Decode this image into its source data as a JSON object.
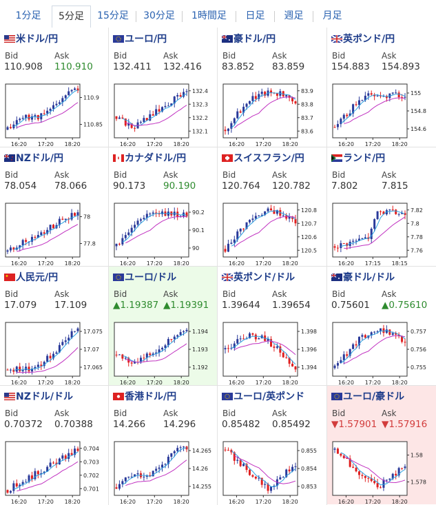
{
  "tabs": [
    {
      "label": "1分足",
      "active": false
    },
    {
      "label": "5分足",
      "active": true
    },
    {
      "label": "15分足",
      "active": false
    },
    {
      "label": "30分足",
      "active": false
    },
    {
      "label": "1時間足",
      "active": false
    },
    {
      "label": "日足",
      "active": false
    },
    {
      "label": "週足",
      "active": false
    },
    {
      "label": "月足",
      "active": false
    }
  ],
  "colors": {
    "up_candle": "#2a3a9a",
    "down_candle": "#e02020",
    "ma_fast": "#2aa0e0",
    "ma_slow": "#c030c0",
    "up_text": "#2e8b2e",
    "down_text": "#d23c3c",
    "title": "#1f3d8a"
  },
  "pairs": [
    {
      "name": "米ドル/円",
      "flag": "us",
      "bid_label": "Bid",
      "ask_label": "Ask",
      "bid": "110.908",
      "ask": "110.910",
      "bid_dir": "",
      "ask_dir": "up",
      "highlight": "",
      "chart": {
        "yticks": [
          "110.9",
          "110.85"
        ],
        "xticks": [
          "16:20",
          "17:20",
          "18:20"
        ],
        "trend": "up-rise",
        "seed": 11
      }
    },
    {
      "name": "ユーロ/円",
      "flag": "eu",
      "bid_label": "Bid",
      "ask_label": "Ask",
      "bid": "132.411",
      "ask": "132.416",
      "bid_dir": "",
      "ask_dir": "",
      "highlight": "",
      "chart": {
        "yticks": [
          "132.4",
          "132.3",
          "132.2",
          "132.1"
        ],
        "xticks": [
          "16:20",
          "17:20",
          "18:20"
        ],
        "trend": "dip-rise",
        "seed": 22
      }
    },
    {
      "name": "豪ドル/円",
      "flag": "au",
      "bid_label": "Bid",
      "ask_label": "Ask",
      "bid": "83.852",
      "ask": "83.859",
      "bid_dir": "",
      "ask_dir": "",
      "highlight": "",
      "chart": {
        "yticks": [
          "83.9",
          "83.8",
          "83.7",
          "83.6"
        ],
        "xticks": [
          "16:20",
          "17:20",
          "18:20"
        ],
        "trend": "rise-hump",
        "seed": 33
      }
    },
    {
      "name": "英ポンド/円",
      "flag": "gb",
      "bid_label": "Bid",
      "ask_label": "Ask",
      "bid": "154.883",
      "ask": "154.893",
      "bid_dir": "",
      "ask_dir": "",
      "highlight": "",
      "chart": {
        "yticks": [
          "155",
          "154.8",
          "154.6"
        ],
        "xticks": [
          "16:20",
          "17:20",
          "18:20"
        ],
        "trend": "rise-flat",
        "seed": 44
      }
    },
    {
      "name": "NZドル/円",
      "flag": "nz",
      "bid_label": "Bid",
      "ask_label": "Ask",
      "bid": "78.054",
      "ask": "78.066",
      "bid_dir": "",
      "ask_dir": "",
      "highlight": "",
      "chart": {
        "yticks": [
          "78",
          "77.8"
        ],
        "xticks": [
          "16:20",
          "17:20",
          "18:20"
        ],
        "trend": "steady-rise",
        "seed": 55
      }
    },
    {
      "name": "カナダドル/円",
      "flag": "ca",
      "bid_label": "Bid",
      "ask_label": "Ask",
      "bid": "90.173",
      "ask": "90.190",
      "bid_dir": "",
      "ask_dir": "up",
      "highlight": "",
      "chart": {
        "yticks": [
          "90.2",
          "90.1",
          "90"
        ],
        "xticks": [
          "16:20",
          "17:20",
          "18:20"
        ],
        "trend": "rise-flat",
        "seed": 66
      }
    },
    {
      "name": "スイスフラン/円",
      "flag": "ch",
      "bid_label": "Bid",
      "ask_label": "Ask",
      "bid": "120.764",
      "ask": "120.782",
      "bid_dir": "",
      "ask_dir": "",
      "highlight": "",
      "chart": {
        "yticks": [
          "120.8",
          "120.7",
          "120.6",
          "120.5"
        ],
        "xticks": [
          "16:20",
          "17:20",
          "18:20"
        ],
        "trend": "rise-hump",
        "seed": 77
      }
    },
    {
      "name": "ランド/円",
      "flag": "za",
      "bid_label": "Bid",
      "ask_label": "Ask",
      "bid": "7.802",
      "ask": "7.815",
      "bid_dir": "",
      "ask_dir": "",
      "highlight": "",
      "chart": {
        "yticks": [
          "7.82",
          "7.8",
          "7.78",
          "7.76"
        ],
        "xticks": [
          "16:20",
          "17:15",
          "18:15"
        ],
        "trend": "step-rise",
        "seed": 88
      }
    },
    {
      "name": "人民元/円",
      "flag": "cn",
      "bid_label": "Bid",
      "ask_label": "Ask",
      "bid": "17.079",
      "ask": "17.109",
      "bid_dir": "",
      "ask_dir": "",
      "highlight": "",
      "chart": {
        "yticks": [
          "17.075",
          "17.07",
          "17.065"
        ],
        "xticks": [
          "16:20",
          "17:20",
          "18:20"
        ],
        "trend": "flat-rise",
        "seed": 99
      }
    },
    {
      "name": "ユーロ/ドル",
      "flag": "eu",
      "bid_label": "Bid",
      "ask_label": "Ask",
      "bid": "▲1.19387",
      "ask": "▲1.19391",
      "bid_dir": "up",
      "ask_dir": "up",
      "highlight": "up",
      "chart": {
        "yticks": [
          "1.194",
          "1.193",
          "1.192"
        ],
        "xticks": [
          "16:20",
          "17:20",
          "18:20"
        ],
        "trend": "dip-rise",
        "seed": 111
      }
    },
    {
      "name": "英ポンド/ドル",
      "flag": "gb",
      "bid_label": "Bid",
      "ask_label": "Ask",
      "bid": "1.39644",
      "ask": "1.39654",
      "bid_dir": "",
      "ask_dir": "",
      "highlight": "",
      "chart": {
        "yticks": [
          "1.398",
          "1.396",
          "1.394"
        ],
        "xticks": [
          "16:20",
          "17:20",
          "18:20"
        ],
        "trend": "hump-fall",
        "seed": 122
      }
    },
    {
      "name": "豪ドル/ドル",
      "flag": "au",
      "bid_label": "Bid",
      "ask_label": "Ask",
      "bid": "0.75601",
      "ask": "▲0.75610",
      "bid_dir": "",
      "ask_dir": "up",
      "highlight": "",
      "chart": {
        "yticks": [
          "0.757",
          "0.756",
          "0.755"
        ],
        "xticks": [
          "16:20",
          "17:20",
          "18:20"
        ],
        "trend": "rise-hump",
        "seed": 133
      }
    },
    {
      "name": "NZドル/ドル",
      "flag": "us",
      "bid_label": "Bid",
      "ask_label": "Ask",
      "bid": "0.70372",
      "ask": "0.70388",
      "bid_dir": "",
      "ask_dir": "",
      "highlight": "",
      "chart": {
        "yticks": [
          "0.704",
          "0.703",
          "0.702",
          "0.701"
        ],
        "xticks": [
          "16:20",
          "17:20",
          "18:20"
        ],
        "trend": "steady-rise",
        "seed": 144
      }
    },
    {
      "name": "香港ドル/円",
      "flag": "hk",
      "bid_label": "Bid",
      "ask_label": "Ask",
      "bid": "14.266",
      "ask": "14.296",
      "bid_dir": "",
      "ask_dir": "",
      "highlight": "",
      "chart": {
        "yticks": [
          "14.265",
          "14.26",
          "14.255"
        ],
        "xticks": [
          "16:20",
          "17:20",
          "18:20"
        ],
        "trend": "up-rise",
        "seed": 155
      }
    },
    {
      "name": "ユーロ/英ポンド",
      "flag": "eu",
      "bid_label": "Bid",
      "ask_label": "Ask",
      "bid": "0.85482",
      "ask": "0.85492",
      "bid_dir": "",
      "ask_dir": "",
      "highlight": "",
      "chart": {
        "yticks": [
          "0.855",
          "0.854",
          "0.853"
        ],
        "xticks": [
          "16:20",
          "17:20",
          "18:20"
        ],
        "trend": "fall-rise",
        "seed": 166
      }
    },
    {
      "name": "ユーロ/豪ドル",
      "flag": "eu",
      "bid_label": "Bid",
      "ask_label": "Ask",
      "bid": "▼1.57901",
      "ask": "▼1.57916",
      "bid_dir": "down",
      "ask_dir": "down",
      "highlight": "down",
      "chart": {
        "yticks": [
          "1.58",
          "1.578"
        ],
        "xticks": [
          "16:20",
          "17:20",
          "18:20"
        ],
        "trend": "fall-rise",
        "seed": 177
      }
    }
  ]
}
